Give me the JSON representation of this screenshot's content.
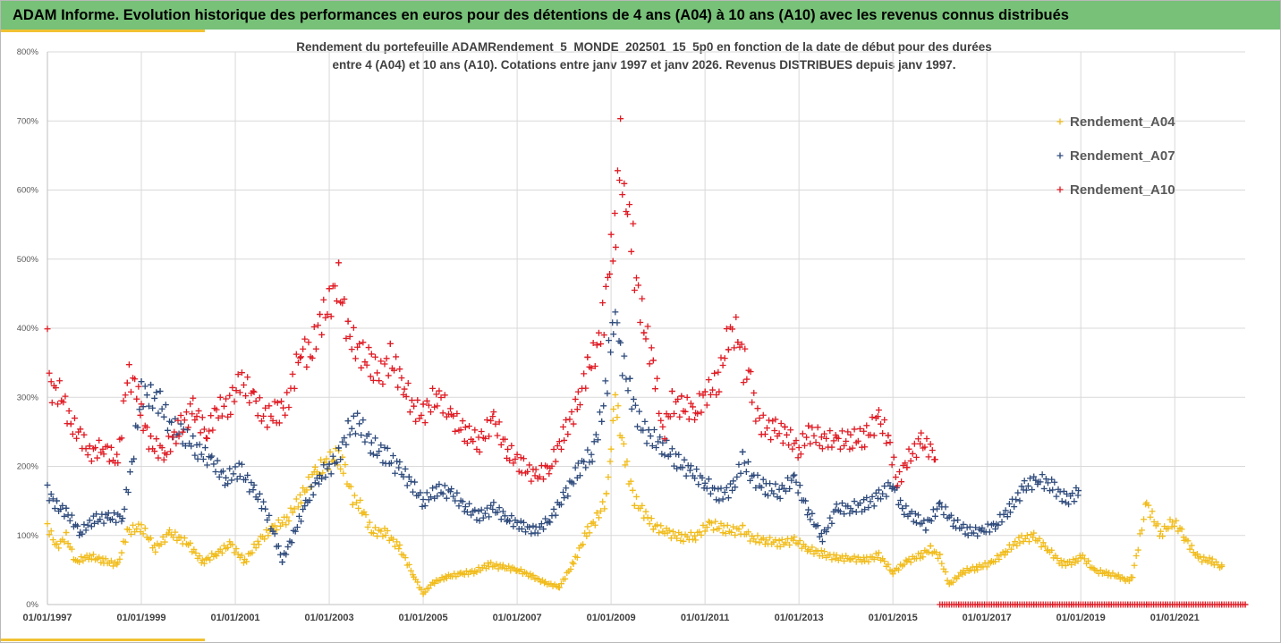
{
  "header": {
    "title": "ADAM Informe. Evolution historique des performances en euros pour des détentions de 4 ans (A04) à 10 ans (A10) avec les revenus connus distribués"
  },
  "colors": {
    "banner": "#77c178",
    "accent": "#f1c232",
    "A04": "#f1bc1b",
    "A07": "#2f4b7c",
    "A10": "#e01b24",
    "grid": "#d9d9d9"
  },
  "chart_data": {
    "type": "scatter",
    "title_line1": "Rendement du portefeuille ADAMRendement_5_MONDE_202501_15_5p0 en fonction de la date de début pour des durées",
    "title_line2": "entre 4 (A04) et 10 ans (A10). Cotations entre janv 1997 et janv 2026. Revenus DISTRIBUES depuis janv 1997.",
    "xlabel": "",
    "ylabel": "",
    "xlim": [
      1997.0,
      2022.5
    ],
    "ylim": [
      0,
      800
    ],
    "grid": true,
    "legend_position": "top-right",
    "y_ticks": [
      0,
      100,
      200,
      300,
      400,
      500,
      600,
      700,
      800
    ],
    "y_tick_labels": [
      "0%",
      "100%",
      "200%",
      "300%",
      "400%",
      "500%",
      "600%",
      "700%",
      "800%"
    ],
    "x_ticks": [
      1997,
      1999,
      2001,
      2003,
      2005,
      2007,
      2009,
      2011,
      2013,
      2015,
      2017,
      2019,
      2021
    ],
    "x_tick_labels": [
      "01/01/1997",
      "01/01/1999",
      "01/01/2001",
      "01/01/2003",
      "01/01/2005",
      "01/01/2007",
      "01/01/2009",
      "01/01/2011",
      "01/01/2013",
      "01/01/2015",
      "01/01/2017",
      "01/01/2019",
      "01/01/2021"
    ],
    "series": [
      {
        "name": "Rendement_A04",
        "color": "#f1bc1b",
        "x": [
          1997.0,
          1997.2,
          1997.4,
          1997.6,
          1997.9,
          1998.2,
          1998.5,
          1998.7,
          1999.0,
          1999.3,
          1999.6,
          2000.0,
          2000.3,
          2000.6,
          2000.9,
          2001.2,
          2001.5,
          2001.8,
          2002.1,
          2002.4,
          2002.7,
          2002.9,
          2003.1,
          2003.2,
          2003.3,
          2003.5,
          2003.7,
          2003.9,
          2004.2,
          2004.5,
          2004.8,
          2005.0,
          2005.2,
          2005.5,
          2005.8,
          2006.1,
          2006.4,
          2006.7,
          2007.0,
          2007.3,
          2007.6,
          2007.9,
          2008.2,
          2008.5,
          2008.7,
          2008.9,
          2009.0,
          2009.05,
          2009.15,
          2009.3,
          2009.5,
          2009.7,
          2009.9,
          2010.2,
          2010.5,
          2010.8,
          2011.1,
          2011.4,
          2011.6,
          2011.8,
          2012.0,
          2012.3,
          2012.6,
          2012.9,
          2013.2,
          2013.5,
          2013.8,
          2014.1,
          2014.4,
          2014.7,
          2015.0,
          2015.3,
          2015.6,
          2015.8,
          2016.0,
          2016.2,
          2016.5,
          2016.8,
          2017.1,
          2017.4,
          2017.7,
          2018.0,
          2018.3,
          2018.6,
          2018.9,
          2019.0,
          2019.3,
          2019.6,
          2019.8,
          2019.95,
          2020.1,
          2020.4,
          2020.7,
          2020.95,
          2021.2,
          2021.5,
          2021.8,
          2022.0
        ],
        "values": [
          110,
          80,
          95,
          60,
          70,
          65,
          60,
          110,
          115,
          80,
          100,
          85,
          60,
          75,
          90,
          65,
          95,
          110,
          120,
          150,
          185,
          200,
          215,
          218,
          205,
          160,
          145,
          110,
          105,
          80,
          40,
          15,
          30,
          40,
          45,
          50,
          60,
          55,
          50,
          40,
          30,
          25,
          60,
          110,
          130,
          160,
          240,
          290,
          265,
          210,
          150,
          130,
          110,
          100,
          95,
          100,
          120,
          115,
          110,
          110,
          95,
          90,
          85,
          90,
          80,
          75,
          70,
          70,
          65,
          70,
          45,
          60,
          70,
          80,
          70,
          30,
          50,
          55,
          60,
          75,
          90,
          95,
          80,
          60,
          65,
          75,
          50,
          45,
          40,
          35,
          40,
          140,
          100,
          120,
          100,
          70,
          65,
          55
        ]
      },
      {
        "name": "Rendement_A07",
        "color": "#2f4b7c",
        "x": [
          1997.0,
          1997.2,
          1997.4,
          1997.7,
          1998.0,
          1998.3,
          1998.6,
          1998.8,
          1999.0,
          1999.2,
          1999.4,
          1999.6,
          1999.9,
          2000.2,
          2000.5,
          2000.8,
          2001.1,
          2001.4,
          2001.6,
          2001.8,
          2002.0,
          2002.2,
          2002.5,
          2002.8,
          2003.0,
          2003.2,
          2003.4,
          2003.6,
          2003.9,
          2004.2,
          2004.5,
          2004.7,
          2005.0,
          2005.3,
          2005.6,
          2005.9,
          2006.2,
          2006.5,
          2006.8,
          2007.1,
          2007.4,
          2007.7,
          2008.0,
          2008.3,
          2008.6,
          2008.8,
          2008.95,
          2009.05,
          2009.2,
          2009.4,
          2009.6,
          2009.8,
          2010.1,
          2010.4,
          2010.7,
          2011.0,
          2011.3,
          2011.6,
          2011.8,
          2012.0,
          2012.3,
          2012.6,
          2012.9,
          2013.2,
          2013.5,
          2013.8,
          2014.1,
          2014.4,
          2014.7,
          2015.0,
          2015.2,
          2015.5,
          2015.7,
          2016.0,
          2016.3,
          2016.6,
          2016.9,
          2017.2,
          2017.5,
          2017.8,
          2018.1,
          2018.4,
          2018.7,
          2018.95
        ],
        "values": [
          165,
          140,
          130,
          100,
          120,
          125,
          130,
          210,
          320,
          310,
          300,
          260,
          240,
          215,
          200,
          180,
          200,
          170,
          150,
          110,
          65,
          95,
          140,
          180,
          190,
          210,
          250,
          270,
          240,
          225,
          200,
          180,
          145,
          160,
          155,
          140,
          130,
          145,
          130,
          115,
          105,
          120,
          150,
          190,
          220,
          280,
          350,
          400,
          380,
          320,
          270,
          245,
          225,
          200,
          185,
          175,
          160,
          175,
          220,
          190,
          170,
          160,
          175,
          130,
          95,
          140,
          145,
          150,
          160,
          175,
          135,
          120,
          110,
          140,
          120,
          110,
          110,
          120,
          140,
          165,
          175,
          165,
          150,
          165
        ]
      },
      {
        "name": "Rendement_A10",
        "color": "#e01b24",
        "x": [
          1997.0,
          1997.1,
          1997.3,
          1997.5,
          1997.7,
          1997.9,
          1998.2,
          1998.5,
          1998.7,
          1998.9,
          1999.0,
          1999.2,
          1999.5,
          1999.8,
          2000.1,
          2000.4,
          2000.6,
          2000.9,
          2001.1,
          2001.4,
          2001.6,
          2001.9,
          2002.1,
          2002.4,
          2002.6,
          2002.8,
          2003.0,
          2003.2,
          2003.4,
          2003.6,
          2003.9,
          2004.1,
          2004.3,
          2004.6,
          2004.8,
          2005.0,
          2005.3,
          2005.6,
          2005.9,
          2006.2,
          2006.5,
          2006.8,
          2007.1,
          2007.4,
          2007.7,
          2008.0,
          2008.3,
          2008.5,
          2008.7,
          2008.85,
          2009.0,
          2009.1,
          2009.2,
          2009.35,
          2009.5,
          2009.7,
          2009.9,
          2010.1,
          2010.3,
          2010.5,
          2010.8,
          2011.0,
          2011.3,
          2011.5,
          2011.7,
          2011.85,
          2012.0,
          2012.2,
          2012.5,
          2012.7,
          2013.0,
          2013.2,
          2013.5,
          2013.8,
          2014.1,
          2014.4,
          2014.7,
          2014.9,
          2015.1,
          2015.3,
          2015.6,
          2015.9
        ],
        "values": [
          390,
          320,
          310,
          260,
          240,
          210,
          220,
          200,
          330,
          320,
          280,
          240,
          230,
          260,
          280,
          240,
          270,
          280,
          320,
          300,
          280,
          290,
          300,
          380,
          360,
          400,
          420,
          450,
          380,
          360,
          350,
          340,
          370,
          330,
          290,
          280,
          300,
          260,
          240,
          230,
          270,
          230,
          210,
          190,
          200,
          240,
          280,
          330,
          360,
          420,
          520,
          550,
          680,
          550,
          500,
          420,
          360,
          250,
          290,
          280,
          270,
          290,
          320,
          390,
          400,
          340,
          310,
          270,
          260,
          250,
          220,
          240,
          230,
          230,
          240,
          250,
          280,
          250,
          180,
          210,
          230,
          210
        ]
      },
      {
        "name": "Rendement_A10",
        "color": "#e01b24",
        "x": [
          2016.0,
          2016.4,
          2016.8,
          2017.2,
          2017.6,
          2018.0,
          2018.4,
          2018.8,
          2019.2,
          2019.6,
          2020.0,
          2020.4,
          2020.8,
          2021.2,
          2021.6,
          2022.0,
          2022.5
        ],
        "values": [
          0,
          0,
          0,
          0,
          0,
          0,
          0,
          0,
          0,
          0,
          0,
          0,
          0,
          0,
          0,
          0,
          0
        ]
      }
    ]
  }
}
